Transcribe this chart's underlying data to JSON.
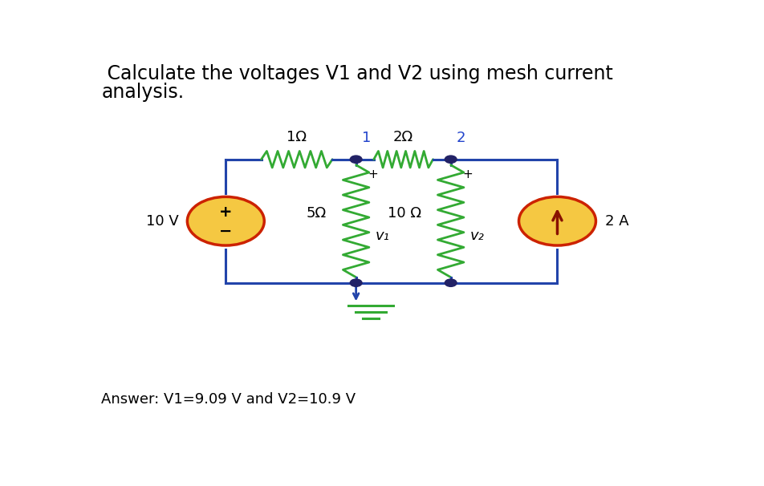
{
  "title_line1": " Calculate the voltages V1 and V2 using mesh current",
  "title_line2": "analysis.",
  "answer": "Answer: V1=9.09 V and V2=10.9 V",
  "title_fontsize": 17,
  "answer_fontsize": 13,
  "wire_color": "#2244aa",
  "resistor_color": "#33aa33",
  "source_fill": "#f5c842",
  "source_border": "#cc2200",
  "node_color": "#222266",
  "arrow_color": "#881100",
  "label_color_blue": "#2244cc",
  "label_color_dark": "#111111",
  "node1_label": "1",
  "node2_label": "2",
  "r1_label": "1Ω",
  "r2_label": "2Ω",
  "r5_label": "5Ω",
  "r10_label": "10 Ω",
  "v10_label": "10 V",
  "i2a_label": "2 A",
  "v1_label": "v₁",
  "v2_label": "v₂",
  "background_color": "#ffffff"
}
